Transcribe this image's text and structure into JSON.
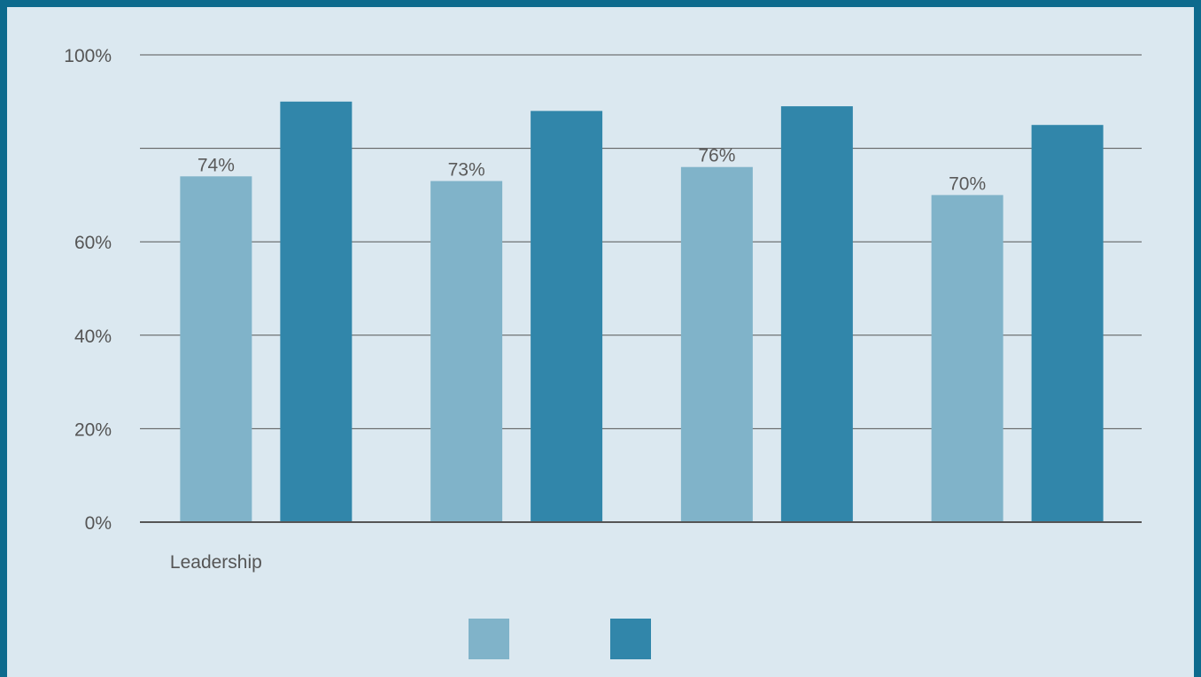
{
  "chart_data": {
    "type": "bar",
    "title": "",
    "xlabel": "",
    "ylabel": "",
    "ylim": [
      0,
      100
    ],
    "grid": true,
    "legend_position": "bottom",
    "y_ticks": [
      {
        "value": 0,
        "label": "0%"
      },
      {
        "value": 20,
        "label": "20%"
      },
      {
        "value": 40,
        "label": "40%"
      },
      {
        "value": 60,
        "label": "60%"
      },
      {
        "value": 80,
        "label": ""
      },
      {
        "value": 100,
        "label": "100%"
      }
    ],
    "categories": [
      "Leadership",
      "",
      "",
      ""
    ],
    "series": [
      {
        "color": "#80b3c9",
        "values": [
          74,
          73,
          76,
          70
        ],
        "labels": [
          "74%",
          "73%",
          "76%",
          "70%"
        ]
      },
      {
        "color": "#3186aa",
        "values": [
          90,
          88,
          89,
          85
        ],
        "labels": [
          "",
          "",
          "",
          ""
        ]
      }
    ]
  }
}
